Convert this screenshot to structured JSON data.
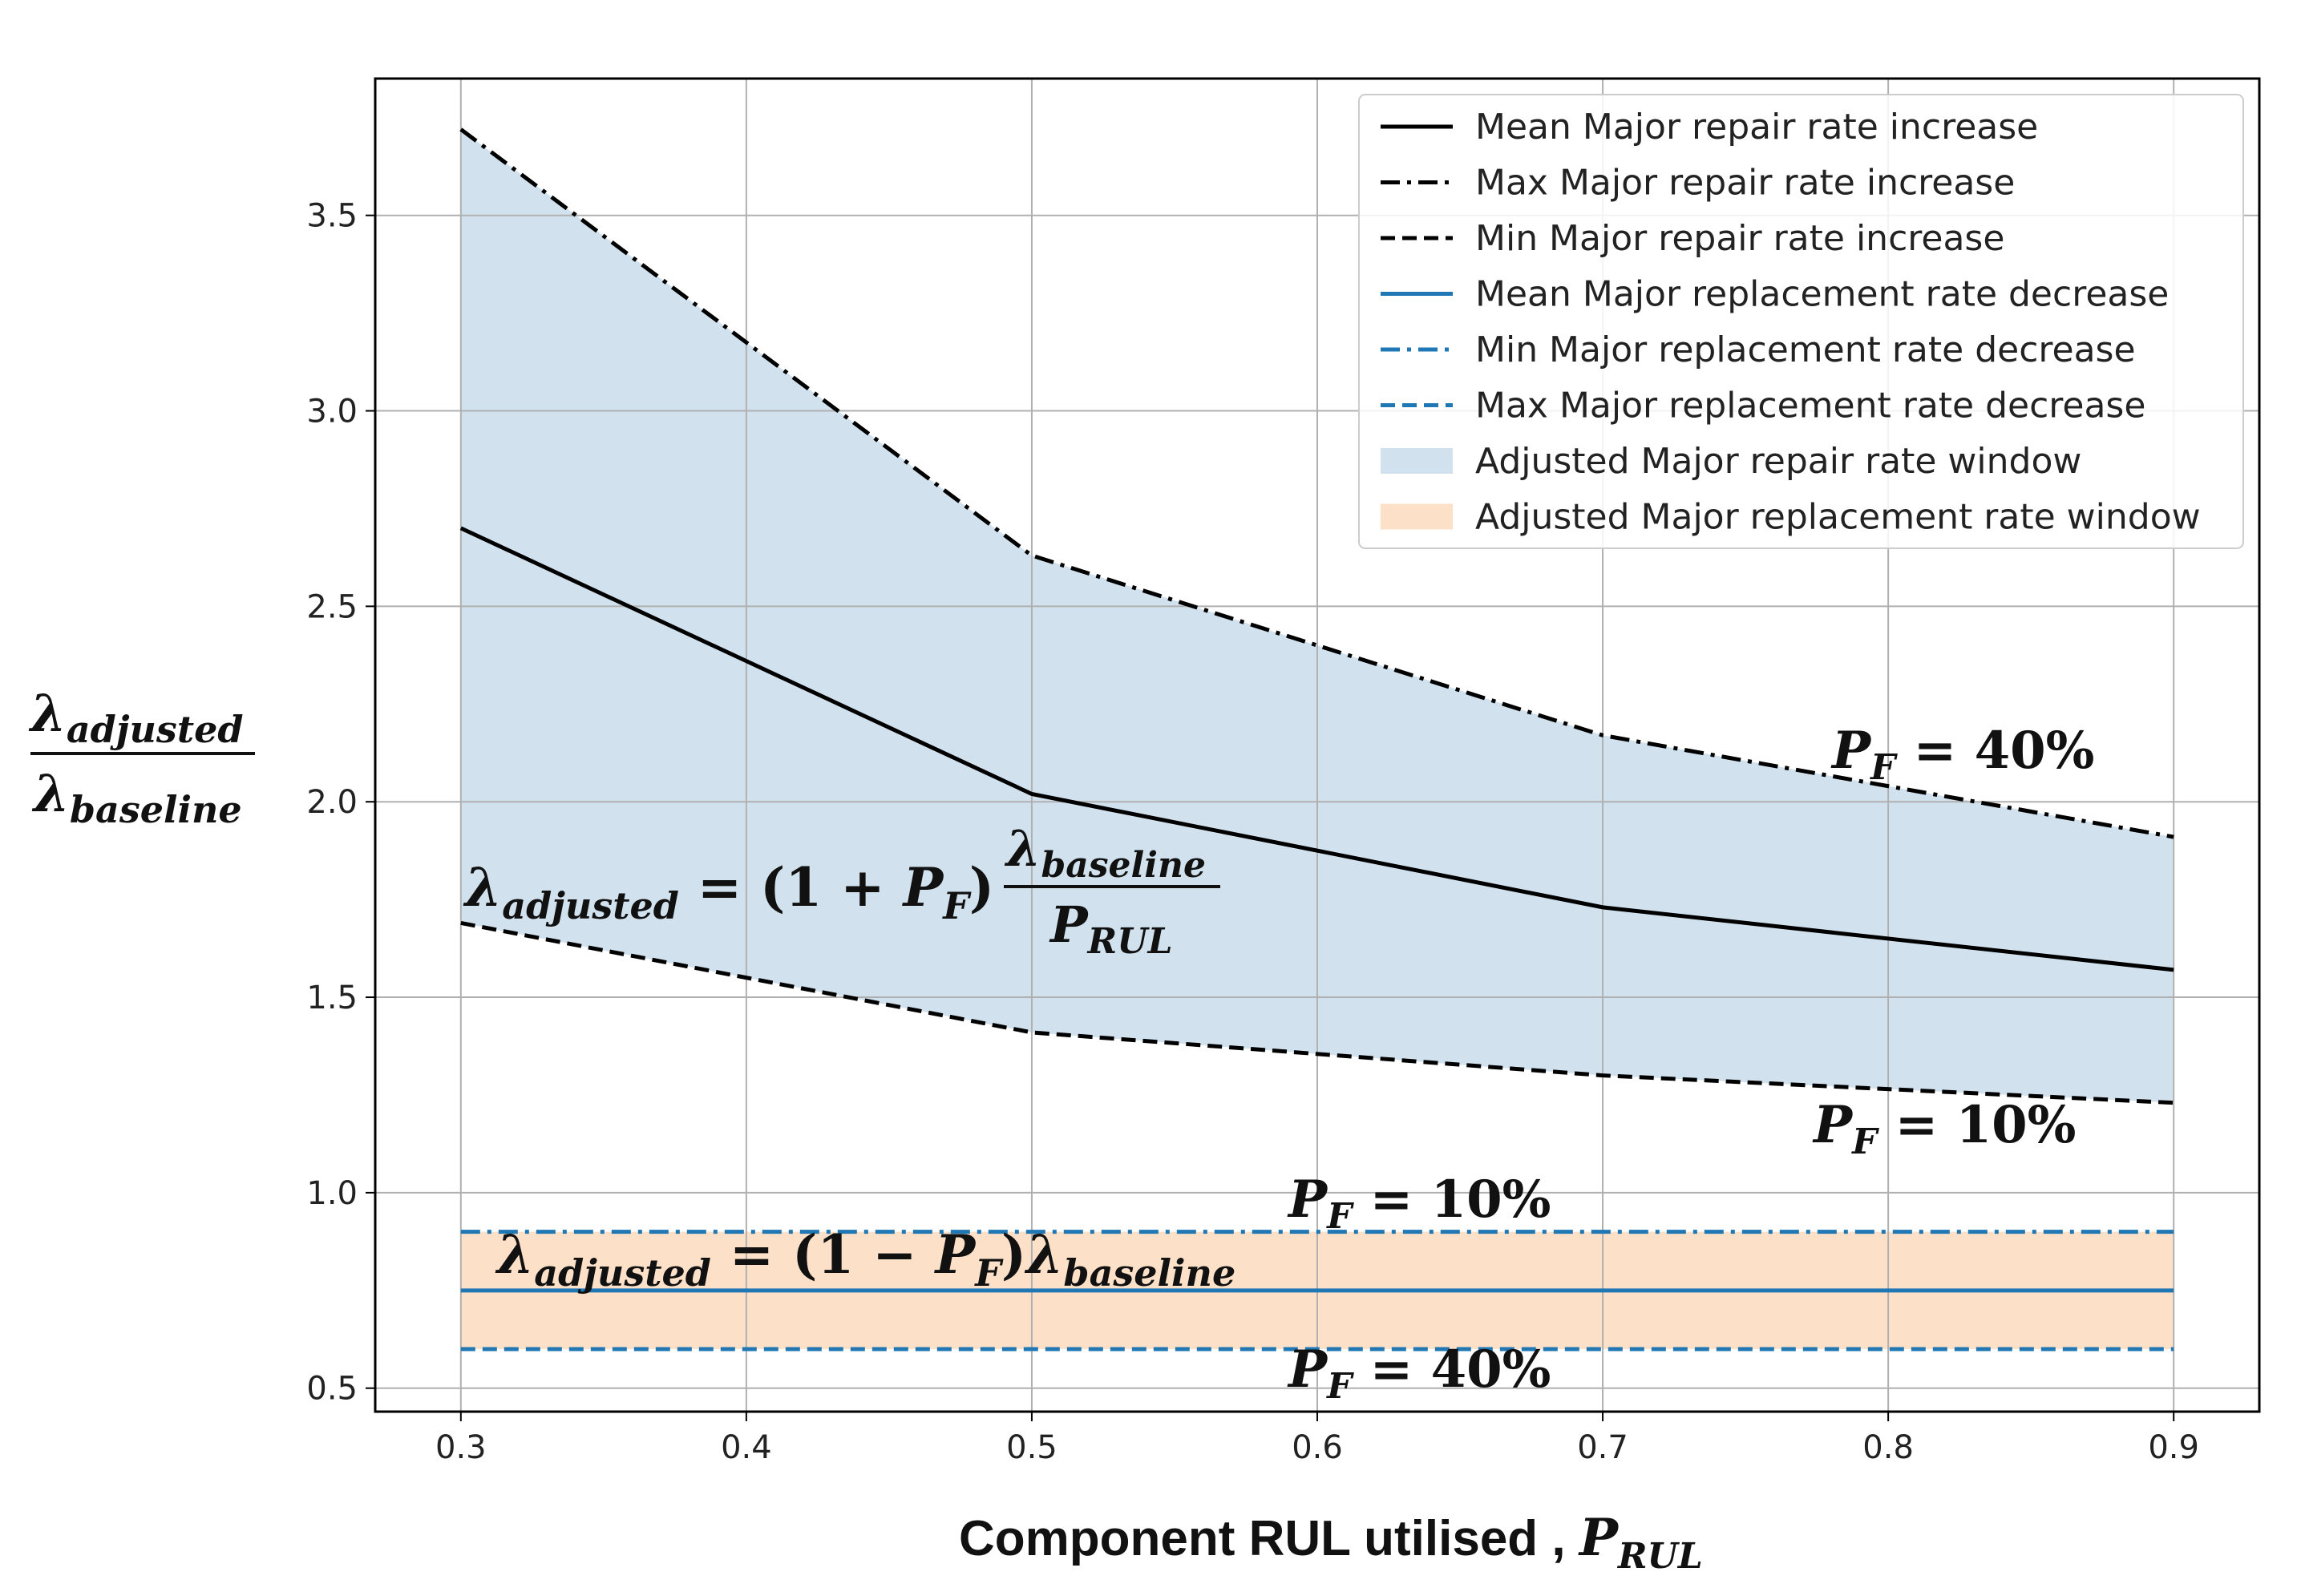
{
  "chart_data": {
    "type": "line",
    "x": [
      0.3,
      0.5,
      0.7,
      0.9
    ],
    "xlim": [
      0.27,
      0.93
    ],
    "ylim": [
      0.44,
      3.85
    ],
    "xticks": [
      0.3,
      0.4,
      0.5,
      0.6,
      0.7,
      0.8,
      0.9
    ],
    "yticks": [
      0.5,
      1.0,
      1.5,
      2.0,
      2.5,
      3.0,
      3.5
    ],
    "xtick_labels": [
      "0.3",
      "0.4",
      "0.5",
      "0.6",
      "0.7",
      "0.8",
      "0.9"
    ],
    "ytick_labels": [
      "0.5",
      "1.0",
      "1.5",
      "2.0",
      "2.5",
      "3.0",
      "3.5"
    ],
    "grid": true,
    "legend_position": "top-right",
    "xlabel": {
      "text": "Component RUL utilised , ",
      "symbol": "P",
      "sub": "RUL"
    },
    "ylabel": {
      "num": "λ",
      "num_sub": "adjusted",
      "den": "λ",
      "den_sub": "baseline"
    },
    "series": [
      {
        "name": "Mean Major repair rate increase",
        "color": "#000000",
        "dash": "solid",
        "values": [
          2.7,
          2.02,
          1.73,
          1.57
        ]
      },
      {
        "name": "Max Major repair rate increase",
        "color": "#000000",
        "dash": "dashdot",
        "values": [
          3.72,
          2.63,
          2.17,
          1.91
        ]
      },
      {
        "name": "Min Major repair rate increase",
        "color": "#000000",
        "dash": "dashed",
        "values": [
          1.69,
          1.41,
          1.3,
          1.23
        ]
      },
      {
        "name": "Mean Major replacement rate decrease",
        "color": "#1f77b4",
        "dash": "solid",
        "values": [
          0.75,
          0.75,
          0.75,
          0.75
        ]
      },
      {
        "name": "Min Major replacement rate decrease",
        "color": "#1f77b4",
        "dash": "dashdot",
        "values": [
          0.9,
          0.9,
          0.9,
          0.9
        ]
      },
      {
        "name": "Max Major replacement rate decrease",
        "color": "#1f77b4",
        "dash": "dashed",
        "values": [
          0.6,
          0.6,
          0.6,
          0.6
        ]
      }
    ],
    "fills": [
      {
        "name": "Adjusted Major repair rate window",
        "color": "#d1e2ee",
        "upper_series": 1,
        "lower_series": 2
      },
      {
        "name": "Adjusted Major replacement rate window",
        "color": "#fde0c8",
        "upper_series": 4,
        "lower_series": 5
      }
    ],
    "annotations": {
      "pf_label": "P",
      "pf_sub": "F",
      "repair_upper": " = 40%",
      "repair_lower": " = 10%",
      "replace_upper": " = 10%",
      "replace_lower": " = 40%",
      "eq_repair": {
        "lhs": "λ",
        "lhs_sub": "adjusted",
        "mid": " = (1 + ",
        "p": "P",
        "p_sub": "F",
        "close": ")",
        "num": "λ",
        "num_sub": "baseline",
        "den": "P",
        "den_sub": "RUL"
      },
      "eq_replace": {
        "lhs": "λ",
        "lhs_sub": "adjusted",
        "mid": " = (1 − ",
        "p": "P",
        "p_sub": "F",
        "close": ")",
        "tail": "λ",
        "tail_sub": "baseline"
      }
    }
  }
}
